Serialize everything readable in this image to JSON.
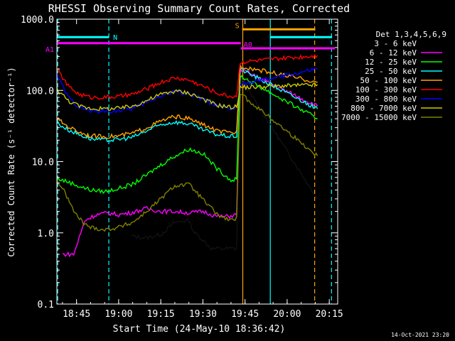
{
  "chart_data": {
    "type": "line",
    "title": "RHESSI Observing Summary Count Rates, Corrected",
    "xlabel": "Start Time (24-May-10 18:36:42)",
    "ylabel": "Corrected Count Rate (s⁻¹ detector⁻¹)",
    "ylog": true,
    "ylim": [
      0.1,
      1000
    ],
    "xlim_minutes": [
      38,
      138
    ],
    "x_ticks": [
      {
        "min": 45,
        "label": "18:45"
      },
      {
        "min": 60,
        "label": "19:00"
      },
      {
        "min": 75,
        "label": "19:15"
      },
      {
        "min": 90,
        "label": "19:30"
      },
      {
        "min": 105,
        "label": "19:45"
      },
      {
        "min": 120,
        "label": "20:00"
      },
      {
        "min": 135,
        "label": "20:15"
      }
    ],
    "y_ticks": [
      {
        "v": 0.1,
        "label": "0.1"
      },
      {
        "v": 1,
        "label": "1.0"
      },
      {
        "v": 10,
        "label": "10.0"
      },
      {
        "v": 100,
        "label": "100.0"
      },
      {
        "v": 1000,
        "label": "1000.0"
      }
    ],
    "legend_title": "Det 1,3,4,5,6,9",
    "legend_position": "right",
    "series": [
      {
        "name": "3 - 6 keV",
        "color": "#000000",
        "points": [
          [
            64.5,
            0.9
          ],
          [
            70,
            0.85
          ],
          [
            75,
            0.95
          ],
          [
            80,
            1.4
          ],
          [
            85,
            1.5
          ],
          [
            87,
            1.0
          ],
          [
            90,
            0.8
          ],
          [
            93,
            0.6
          ],
          [
            99,
            0.6
          ],
          [
            102,
            0.6
          ],
          [
            103.3,
            150
          ],
          [
            130.8,
            3
          ]
        ]
      },
      {
        "name": "6 - 12 keV",
        "color": "#ff00ff",
        "points": [
          [
            40,
            0.5
          ],
          [
            44,
            0.5
          ],
          [
            48,
            1.5
          ],
          [
            52,
            1.8
          ],
          [
            56,
            1.9
          ],
          [
            60,
            1.8
          ],
          [
            64,
            1.9
          ],
          [
            70,
            2.2
          ],
          [
            75,
            2.0
          ],
          [
            80,
            2.0
          ],
          [
            85,
            1.9
          ],
          [
            90,
            2.0
          ],
          [
            95,
            1.7
          ],
          [
            99,
            1.7
          ],
          [
            102,
            1.8
          ],
          [
            103.3,
            200
          ],
          [
            130.8,
            60
          ]
        ]
      },
      {
        "name": "12 - 25 keV",
        "color": "#00ff00",
        "points": [
          [
            38,
            5.8
          ],
          [
            42,
            5.2
          ],
          [
            46,
            4.5
          ],
          [
            50,
            4.0
          ],
          [
            55,
            3.8
          ],
          [
            60,
            4.2
          ],
          [
            65,
            4.8
          ],
          [
            70,
            6.5
          ],
          [
            75,
            9
          ],
          [
            80,
            12
          ],
          [
            85,
            15
          ],
          [
            90,
            13
          ],
          [
            95,
            8
          ],
          [
            100,
            5.5
          ],
          [
            102,
            5.6
          ],
          [
            103.3,
            160
          ],
          [
            130.8,
            40
          ]
        ]
      },
      {
        "name": "25 - 50 keV",
        "color": "#00ffff",
        "points": [
          [
            38,
            35
          ],
          [
            42,
            28
          ],
          [
            46,
            24
          ],
          [
            50,
            21
          ],
          [
            55,
            20
          ],
          [
            60,
            20.5
          ],
          [
            65,
            22
          ],
          [
            70,
            27
          ],
          [
            75,
            33
          ],
          [
            80,
            36
          ],
          [
            85,
            34
          ],
          [
            90,
            28
          ],
          [
            95,
            24
          ],
          [
            100,
            22.5
          ],
          [
            102,
            23
          ],
          [
            103.3,
            200
          ],
          [
            130.8,
            55
          ]
        ]
      },
      {
        "name": "50 - 100 keV",
        "color": "#ffa500",
        "points": [
          [
            38,
            40
          ],
          [
            42,
            31
          ],
          [
            46,
            26
          ],
          [
            50,
            23
          ],
          [
            55,
            22.5
          ],
          [
            60,
            23
          ],
          [
            65,
            25
          ],
          [
            70,
            30
          ],
          [
            75,
            37
          ],
          [
            80,
            43
          ],
          [
            85,
            40
          ],
          [
            90,
            33
          ],
          [
            95,
            27
          ],
          [
            100,
            25
          ],
          [
            102,
            26
          ],
          [
            103.3,
            220
          ],
          [
            130.8,
            130
          ]
        ]
      },
      {
        "name": "100 - 300 keV",
        "color": "#ff0000",
        "points": [
          [
            38,
            200
          ],
          [
            42,
            115
          ],
          [
            46,
            88
          ],
          [
            50,
            80
          ],
          [
            55,
            80
          ],
          [
            60,
            82
          ],
          [
            65,
            88
          ],
          [
            70,
            105
          ],
          [
            75,
            130
          ],
          [
            80,
            150
          ],
          [
            85,
            140
          ],
          [
            90,
            115
          ],
          [
            95,
            92
          ],
          [
            100,
            82
          ],
          [
            102,
            84
          ],
          [
            103.3,
            250
          ],
          [
            130.8,
            310
          ]
        ]
      },
      {
        "name": "300 - 800 keV",
        "color": "#0000ff",
        "points": [
          [
            38,
            165
          ],
          [
            42,
            80
          ],
          [
            46,
            58
          ],
          [
            50,
            51
          ],
          [
            55,
            51
          ],
          [
            60,
            52
          ],
          [
            65,
            56
          ],
          [
            70,
            68
          ],
          [
            75,
            85
          ],
          [
            80,
            96
          ],
          [
            85,
            90
          ],
          [
            90,
            75
          ],
          [
            95,
            60
          ],
          [
            100,
            55
          ],
          [
            102,
            56
          ],
          [
            103.3,
            120
          ],
          [
            130.8,
            200
          ]
        ]
      },
      {
        "name": "800 - 7000 keV",
        "color": "#cccc00",
        "points": [
          [
            38,
            105
          ],
          [
            42,
            72
          ],
          [
            46,
            60
          ],
          [
            50,
            56
          ],
          [
            55,
            55
          ],
          [
            60,
            56
          ],
          [
            65,
            60
          ],
          [
            70,
            72
          ],
          [
            75,
            88
          ],
          [
            80,
            98
          ],
          [
            85,
            92
          ],
          [
            90,
            76
          ],
          [
            95,
            62
          ],
          [
            100,
            58
          ],
          [
            102,
            59
          ],
          [
            103.3,
            110
          ],
          [
            130.8,
            120
          ]
        ]
      },
      {
        "name": "7000 - 15000 keV",
        "color": "#808000",
        "points": [
          [
            38,
            5.5
          ],
          [
            40,
            4.2
          ],
          [
            42,
            3.0
          ],
          [
            44,
            2.0
          ],
          [
            46,
            1.6
          ],
          [
            48,
            1.3
          ],
          [
            50,
            1.2
          ],
          [
            55,
            1.1
          ],
          [
            60,
            1.2
          ],
          [
            65,
            1.4
          ],
          [
            70,
            2.0
          ],
          [
            75,
            3.0
          ],
          [
            80,
            4.6
          ],
          [
            85,
            4.8
          ],
          [
            88,
            3.6
          ],
          [
            92,
            2.4
          ],
          [
            96,
            1.7
          ],
          [
            100,
            1.5
          ],
          [
            102,
            1.6
          ],
          [
            103.3,
            90
          ],
          [
            130.8,
            12
          ]
        ]
      }
    ],
    "annotations": [
      {
        "label": "N",
        "color": "#00ffff",
        "x_from": 38,
        "x_to": 56.5,
        "level": 560
      },
      {
        "label": "",
        "color": "#00ffff",
        "x_from": 114,
        "x_to": 136,
        "level": 560
      },
      {
        "label": "S",
        "color": "#ffa500",
        "x_from": 104,
        "x_to": 130,
        "level": 720
      },
      {
        "label": "A1",
        "color": "#ff00ff",
        "x_from": 38,
        "x_to": 103.5,
        "level": 460
      },
      {
        "label": "A0",
        "color": "#ff00ff",
        "x_from": 103.5,
        "x_to": 137,
        "level": 390
      }
    ],
    "vlines": [
      {
        "min": 38.3,
        "color": "#00ffff",
        "dash": true
      },
      {
        "min": 56.5,
        "color": "#00ffff",
        "dash": true
      },
      {
        "min": 104.2,
        "color": "#ffa500",
        "dash": false
      },
      {
        "min": 114.0,
        "color": "#00ffff",
        "dash": false
      },
      {
        "min": 129.8,
        "color": "#ffa500",
        "dash": true
      },
      {
        "min": 135.8,
        "color": "#00ffff",
        "dash": true
      }
    ]
  },
  "footer": {
    "timestamp": "14-Oct-2021 23:20"
  }
}
